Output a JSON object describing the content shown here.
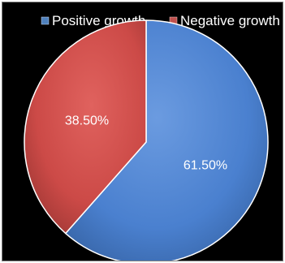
{
  "chart_data": {
    "type": "pie",
    "title": "",
    "categories": [
      "Positive growth",
      "Negative growth"
    ],
    "values": [
      61.5,
      38.5
    ],
    "data_labels": [
      "61.50%",
      "38.50%"
    ],
    "colors": [
      "#4f81bd",
      "#c0504d"
    ],
    "legend_position": "top",
    "background": "#000000",
    "start_angle_deg": 0,
    "direction": "clockwise"
  }
}
